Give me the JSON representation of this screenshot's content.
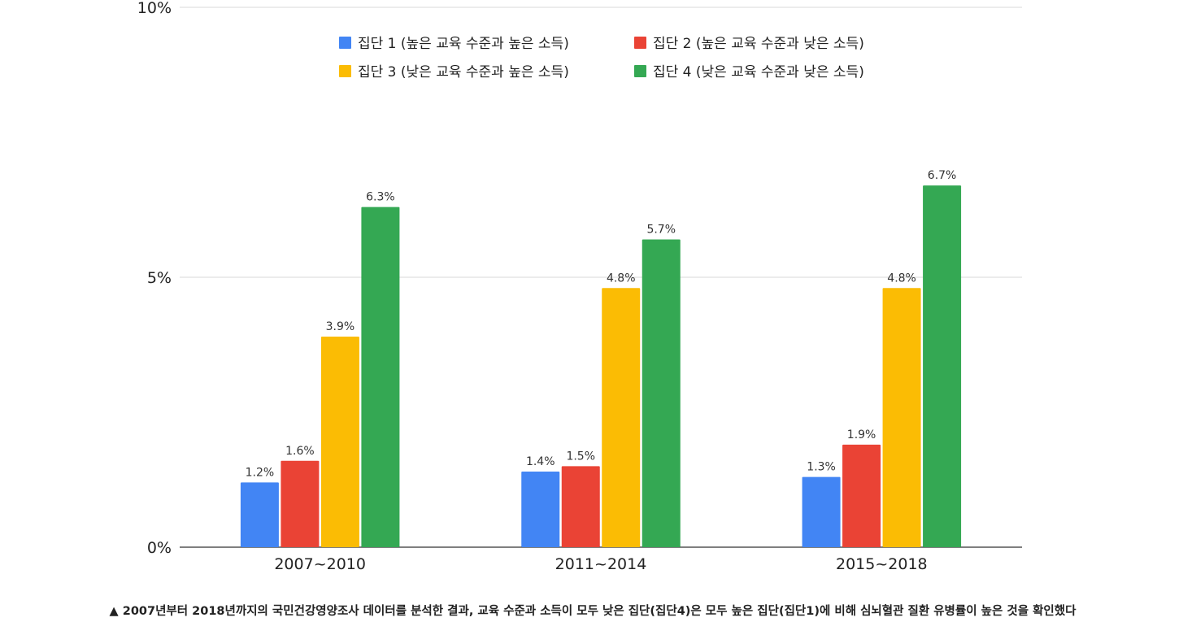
{
  "chart_data": {
    "type": "bar",
    "categories": [
      "2007~2010",
      "2011~2014",
      "2015~2018"
    ],
    "series": [
      {
        "name": "집단 1 (높은 교육 수준과 높은 소득)",
        "color": "#4285F4",
        "values": [
          1.2,
          1.4,
          1.3
        ],
        "labels": [
          "1.2%",
          "1.4%",
          "1.3%"
        ]
      },
      {
        "name": "집단 2 (높은 교육 수준과 낮은 소득)",
        "color": "#EA4335",
        "values": [
          1.6,
          1.5,
          1.9
        ],
        "labels": [
          "1.6%",
          "1.5%",
          "1.9%"
        ]
      },
      {
        "name": "집단 3 (낮은 교육 수준과 높은 소득)",
        "color": "#FBBC04",
        "values": [
          3.9,
          4.8,
          4.8
        ],
        "labels": [
          "3.9%",
          "4.8%",
          "4.8%"
        ]
      },
      {
        "name": "집단 4 (낮은 교육 수준과 낮은 소득)",
        "color": "#34A853",
        "values": [
          6.3,
          5.7,
          6.7
        ],
        "labels": [
          "6.3%",
          "5.7%",
          "6.7%"
        ]
      }
    ],
    "ylim": [
      0,
      10
    ],
    "yticks": [
      {
        "value": 0,
        "label": "0%"
      },
      {
        "value": 5,
        "label": "5%"
      },
      {
        "value": 10,
        "label": "10%"
      }
    ],
    "grid": true,
    "legend_position": "top",
    "title": "",
    "xlabel": "",
    "ylabel": ""
  },
  "caption": "▲ 2007년부터 2018년까지의 국민건강영양조사 데이터를 분석한 결과, 교육 수준과 소득이 모두 낮은 집단(집단4)은 모두 높은 집단(집단1)에 비해 심뇌혈관 질환 유병률이 높은 것을 확인했다"
}
